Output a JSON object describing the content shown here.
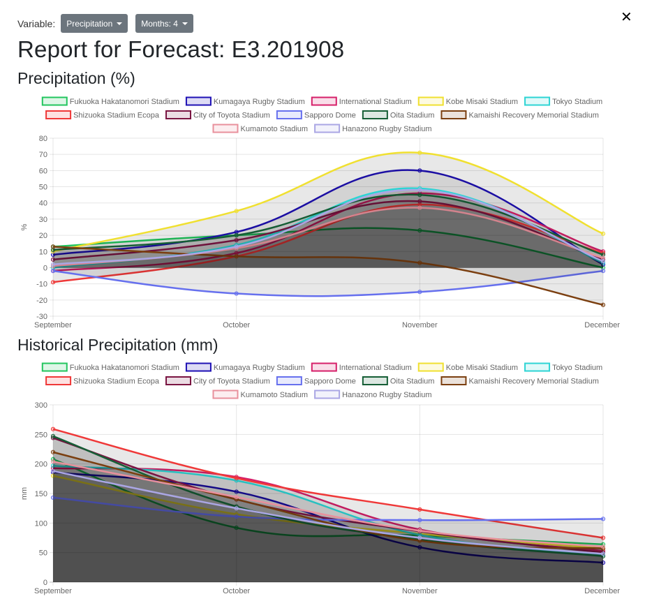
{
  "header": {
    "variable_label": "Variable:",
    "variable_value": "Precipitation",
    "months_label": "Months: 4",
    "title": "Report for Forecast: E3.201908"
  },
  "stadiums": [
    {
      "name": "Fukuoka Hakatanomori Stadium",
      "color": "#22c55e"
    },
    {
      "name": "Kumagaya Rugby Stadium",
      "color": "#1e10b4"
    },
    {
      "name": "International Stadium",
      "color": "#d61f69"
    },
    {
      "name": "Kobe Misaki Stadium",
      "color": "#f0e030"
    },
    {
      "name": "Tokyo Stadium",
      "color": "#2dd4d4"
    },
    {
      "name": "Shizuoka Stadium Ecopa",
      "color": "#ef3838"
    },
    {
      "name": "City of Toyota Stadium",
      "color": "#7a1542"
    },
    {
      "name": "Sapporo Dome",
      "color": "#6670ee"
    },
    {
      "name": "Oita Stadium",
      "color": "#155e35"
    },
    {
      "name": "Kamaishi Recovery Memorial Stadium",
      "color": "#7b3f10"
    },
    {
      "name": "Kumamoto Stadium",
      "color": "#e8909c"
    },
    {
      "name": "Hanazono Rugby Stadium",
      "color": "#aaa6e4"
    }
  ],
  "chart_data": [
    {
      "type": "line",
      "title": "Precipitation (%)",
      "ylabel": "%",
      "categories": [
        "September",
        "October",
        "November",
        "December"
      ],
      "ylim": [
        -30,
        80
      ],
      "yticks": [
        -30,
        -20,
        -10,
        0,
        10,
        20,
        30,
        40,
        50,
        60,
        70,
        80
      ],
      "series": [
        {
          "name": "Fukuoka Hakatanomori Stadium",
          "values": [
            13,
            20,
            23,
            0
          ]
        },
        {
          "name": "Kumagaya Rugby Stadium",
          "values": [
            8,
            22,
            60,
            2
          ]
        },
        {
          "name": "International Stadium",
          "values": [
            -2,
            9,
            46,
            10
          ]
        },
        {
          "name": "Kobe Misaki Stadium",
          "values": [
            10,
            35,
            71,
            21
          ]
        },
        {
          "name": "Tokyo Stadium",
          "values": [
            0,
            14,
            49,
            3
          ]
        },
        {
          "name": "Shizuoka Stadium Ecopa",
          "values": [
            -9,
            7,
            39,
            9
          ]
        },
        {
          "name": "City of Toyota Stadium",
          "values": [
            5,
            17,
            41,
            5
          ]
        },
        {
          "name": "Sapporo Dome",
          "values": [
            -2,
            -16,
            -15,
            -2
          ]
        },
        {
          "name": "Oita Stadium",
          "values": [
            11,
            20,
            45,
            8
          ]
        },
        {
          "name": "Kamaishi Recovery Memorial Stadium",
          "values": [
            13,
            7,
            3,
            -23
          ]
        },
        {
          "name": "Kumamoto Stadium",
          "values": [
            1,
            12,
            37,
            6
          ]
        },
        {
          "name": "Hanazono Rugby Stadium",
          "values": [
            2,
            13,
            48,
            4
          ]
        }
      ]
    },
    {
      "type": "line",
      "title": "Historical Precipitation (mm)",
      "ylabel": "mm",
      "categories": [
        "September",
        "October",
        "November",
        "December"
      ],
      "ylim": [
        0,
        300
      ],
      "yticks": [
        0,
        50,
        100,
        150,
        200,
        250,
        300
      ],
      "series": [
        {
          "name": "Fukuoka Hakatanomori Stadium",
          "values": [
            208,
            92,
            79,
            64
          ]
        },
        {
          "name": "Kumagaya Rugby Stadium",
          "values": [
            186,
            153,
            59,
            33
          ]
        },
        {
          "name": "International Stadium",
          "values": [
            193,
            178,
            89,
            53
          ]
        },
        {
          "name": "Kobe Misaki Stadium",
          "values": [
            180,
            115,
            82,
            57
          ]
        },
        {
          "name": "Tokyo Stadium",
          "values": [
            197,
            172,
            80,
            47
          ]
        },
        {
          "name": "Shizuoka Stadium Ecopa",
          "values": [
            259,
            176,
            123,
            75
          ]
        },
        {
          "name": "City of Toyota Stadium",
          "values": [
            244,
            140,
            86,
            50
          ]
        },
        {
          "name": "Sapporo Dome",
          "values": [
            143,
            111,
            105,
            107
          ]
        },
        {
          "name": "Oita Stadium",
          "values": [
            247,
            128,
            72,
            44
          ]
        },
        {
          "name": "Kamaishi Recovery Memorial Stadium",
          "values": [
            220,
            140,
            70,
            57
          ]
        },
        {
          "name": "Kumamoto Stadium",
          "values": [
            204,
            144,
            87,
            60
          ]
        },
        {
          "name": "Hanazono Rugby Stadium",
          "values": [
            188,
            125,
            75,
            48
          ]
        }
      ]
    }
  ]
}
